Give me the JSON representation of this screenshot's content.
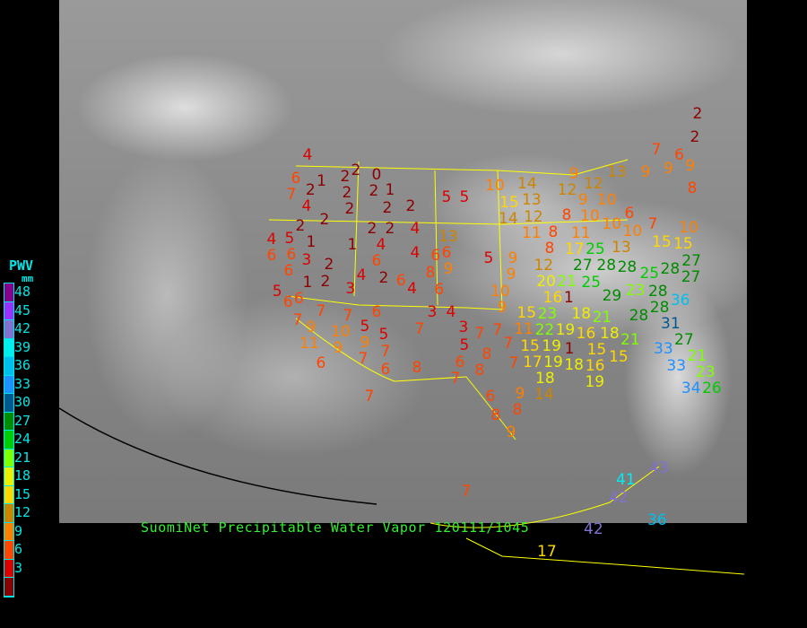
{
  "caption": "SuomiNet Precipitable Water Vapor 120111/1045",
  "legend": {
    "title": "PWV",
    "unit": "mm",
    "labels": [
      "48",
      "45",
      "42",
      "39",
      "36",
      "33",
      "30",
      "27",
      "24",
      "21",
      "18",
      "15",
      "12",
      "9",
      "6",
      "3"
    ],
    "colors": [
      "#8b008b",
      "#9b30ff",
      "#8470d0",
      "#00eeee",
      "#00bfee",
      "#1e90ff",
      "#00588f",
      "#008b00",
      "#00cd00",
      "#7fff00",
      "#eeee00",
      "#ffd700",
      "#cd8500",
      "#ff7f00",
      "#ff4500",
      "#dd0000",
      "#8b0000"
    ]
  },
  "stations": [
    4,
    6,
    7,
    1,
    2,
    2,
    0,
    2,
    2,
    2,
    1,
    4,
    2,
    2,
    2,
    5,
    5,
    2,
    2,
    2,
    2,
    4,
    4,
    5,
    1,
    1,
    4,
    13,
    6,
    6,
    3,
    6,
    4,
    6,
    6,
    6,
    2,
    8,
    9,
    1,
    2,
    4,
    2,
    6,
    4,
    6,
    5,
    3,
    6,
    7,
    6,
    9,
    9,
    8,
    9,
    13,
    9,
    12,
    12,
    10,
    14,
    15,
    13,
    14,
    12,
    9,
    10,
    8,
    10,
    6,
    11,
    8,
    10,
    10,
    7,
    15,
    15,
    10,
    11,
    17,
    13,
    5,
    9,
    8,
    25,
    27,
    28,
    28,
    9,
    12,
    25,
    28,
    27,
    27,
    25,
    23,
    10,
    20,
    21,
    16,
    1,
    29,
    28,
    36,
    6,
    7,
    6,
    3,
    4,
    9,
    23,
    7,
    7,
    15,
    9,
    10,
    5,
    5,
    7,
    3,
    7,
    7,
    11,
    22,
    11,
    9,
    9,
    7,
    5,
    7,
    15,
    19,
    6,
    7,
    6,
    8,
    6,
    8,
    8,
    7,
    17,
    7,
    18,
    14,
    7,
    6,
    9,
    8,
    8,
    9,
    18,
    21,
    18,
    16,
    15,
    19,
    1,
    19,
    18,
    16,
    19,
    15,
    21,
    31,
    33,
    27,
    21,
    33,
    23,
    34,
    26,
    28,
    28,
    43,
    41,
    42,
    36,
    42,
    17,
    7,
    2,
    2
  ],
  "surface_colors": {
    "background": "#000000",
    "borders": "#ffff00"
  }
}
